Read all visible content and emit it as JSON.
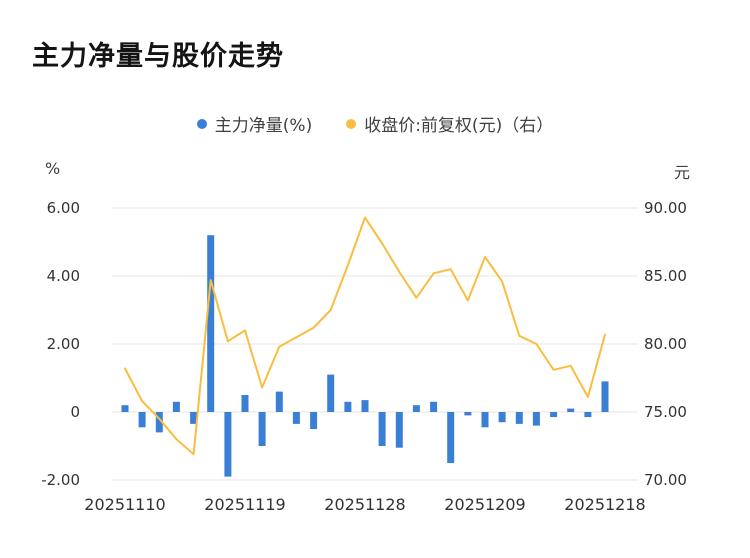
{
  "title": "主力净量与股价走势",
  "legend": [
    {
      "label": "主力净量(%)",
      "color": "#3a7fd6"
    },
    {
      "label": "收盘价:前复权(元)（右）",
      "color": "#f9bd40"
    }
  ],
  "chart_data": {
    "type": "combo",
    "title": "主力净量与股价走势",
    "grid": true,
    "legend_position": "top",
    "x": [
      "20251110",
      "20251111",
      "20251112",
      "20251113",
      "20251114",
      "20251117",
      "20251118",
      "20251119",
      "20251120",
      "20251121",
      "20251124",
      "20251125",
      "20251126",
      "20251127",
      "20251128",
      "20251201",
      "20251202",
      "20251203",
      "20251204",
      "20251205",
      "20251208",
      "20251209",
      "20251210",
      "20251211",
      "20251212",
      "20251215",
      "20251216",
      "20251217",
      "20251218"
    ],
    "x_tick_labels": [
      "20251110",
      "20251119",
      "20251128",
      "20251209",
      "20251218"
    ],
    "left_axis": {
      "unit": "%",
      "min": -2,
      "max": 6,
      "ticks": [
        {
          "value": 6,
          "label": "6.00"
        },
        {
          "value": 4,
          "label": "4.00"
        },
        {
          "value": 2,
          "label": "2.00"
        },
        {
          "value": 0,
          "label": "0"
        },
        {
          "value": -2,
          "label": "-2.00"
        }
      ]
    },
    "right_axis": {
      "unit": "元",
      "min": 70,
      "max": 90,
      "ticks": [
        {
          "value": 90,
          "label": "90.00"
        },
        {
          "value": 85,
          "label": "85.00"
        },
        {
          "value": 80,
          "label": "80.00"
        },
        {
          "value": 75,
          "label": "75.00"
        },
        {
          "value": 70,
          "label": "70.00"
        }
      ]
    },
    "series": [
      {
        "name": "主力净量(%)",
        "type": "bar",
        "axis": "left",
        "color": "#3a7fd6",
        "values": [
          0.2,
          -0.45,
          -0.6,
          0.3,
          -0.35,
          5.2,
          -1.9,
          0.5,
          -1.0,
          0.6,
          -0.35,
          -0.5,
          1.1,
          0.3,
          0.35,
          -1.0,
          -1.05,
          0.2,
          0.3,
          -1.5,
          -0.1,
          -0.45,
          -0.3,
          -0.35,
          -0.4,
          -0.15,
          0.1,
          -0.15,
          0.9
        ]
      },
      {
        "name": "收盘价:前复权(元)（右）",
        "type": "line",
        "axis": "right",
        "color": "#f9bd40",
        "values": [
          78.2,
          75.8,
          74.5,
          73.0,
          71.9,
          84.7,
          80.2,
          81.0,
          76.8,
          79.8,
          80.5,
          81.2,
          82.5,
          85.8,
          89.3,
          87.4,
          85.3,
          83.4,
          85.2,
          85.5,
          83.2,
          86.4,
          84.6,
          80.6,
          80.0,
          78.1,
          78.4,
          76.1,
          80.7
        ]
      }
    ]
  }
}
